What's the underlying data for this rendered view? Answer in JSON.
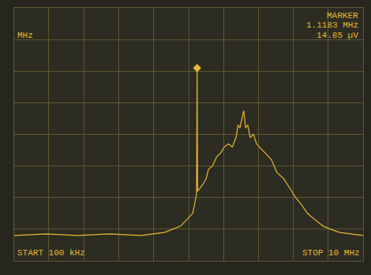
{
  "chart_data": {
    "type": "line",
    "log": "x",
    "grid": true,
    "tick_labels": false,
    "color": "#e8b830",
    "marker_header": "MARKER",
    "marker_frequency": "1.1183 MHz",
    "marker_amplitude": "14.85 µV",
    "unit_label": "MHz",
    "start_label": "START 100 kHz",
    "stop_label": "STOP 10 MHz",
    "x": [
      0.1,
      0.152,
      0.231,
      0.35,
      0.533,
      0.73,
      0.9,
      1.055,
      1.1,
      1.11,
      1.1183,
      1.125,
      1.2,
      1.26,
      1.3,
      1.37,
      1.45,
      1.52,
      1.6,
      1.69,
      1.78,
      1.87,
      1.92,
      1.97,
      2.02,
      2.07,
      2.12,
      2.18,
      2.25,
      2.35,
      2.45,
      2.55,
      2.75,
      2.98,
      3.2,
      3.5,
      3.8,
      4.1,
      4.4,
      4.8,
      5.3,
      5.9,
      6.5,
      7.3,
      8.5,
      10
    ],
    "values": [
      0.8,
      0.85,
      0.8,
      0.85,
      0.8,
      0.9,
      1.1,
      1.5,
      2.0,
      2.1,
      6.1,
      2.2,
      2.4,
      2.6,
      2.9,
      3.0,
      3.3,
      3.4,
      3.6,
      3.7,
      3.6,
      3.9,
      4.3,
      4.2,
      4.5,
      4.75,
      4.2,
      4.3,
      3.9,
      4.0,
      3.7,
      3.6,
      3.4,
      3.2,
      2.8,
      2.6,
      2.3,
      2.0,
      1.8,
      1.5,
      1.3,
      1.1,
      1.0,
      0.9,
      0.85,
      0.8
    ],
    "marker_point": {
      "x": 1.1183,
      "y": 6.1,
      "marker": "diamond"
    },
    "xlim": [
      0.1,
      10
    ],
    "xticks": [
      0.1,
      0.158,
      0.251,
      0.398,
      0.631,
      1,
      1.585,
      2.512,
      3.981,
      6.31,
      10
    ],
    "ylim": [
      0,
      8
    ],
    "yticks": [
      0,
      1,
      2,
      3,
      4,
      5,
      6,
      7,
      8
    ]
  }
}
